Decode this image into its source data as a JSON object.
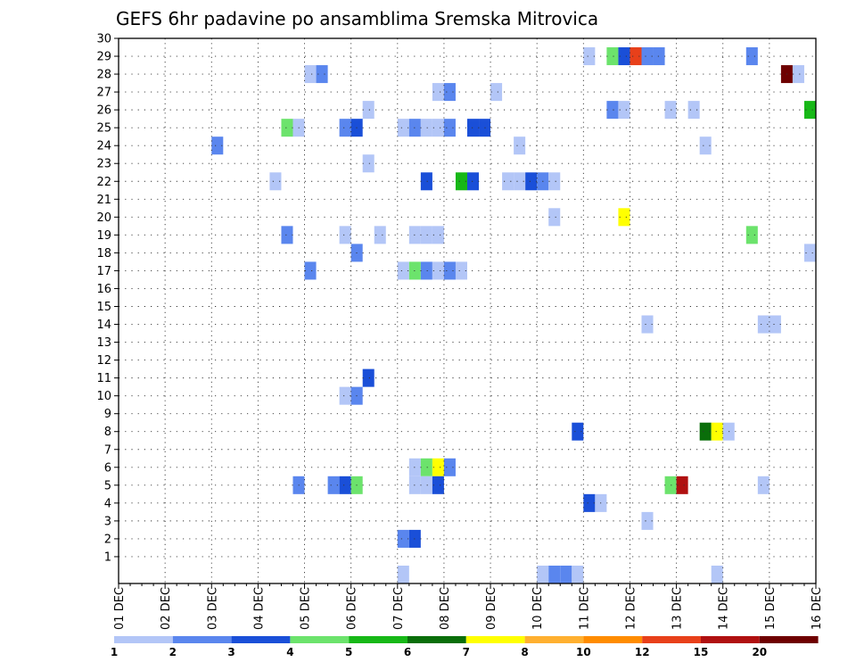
{
  "chart_data": {
    "type": "heatmap",
    "title": "GEFS 6hr padavine po ansamblima Sremska Mitrovica",
    "xlabel": "",
    "ylabel": "",
    "x_ticks": [
      "01 DEC",
      "02 DEC",
      "03 DEC",
      "04 DEC",
      "05 DEC",
      "06 DEC",
      "07 DEC",
      "08 DEC",
      "09 DEC",
      "10 DEC",
      "11 DEC",
      "12 DEC",
      "13 DEC",
      "14 DEC",
      "15 DEC",
      "16 DEC"
    ],
    "y_ticks": [
      "1",
      "2",
      "3",
      "4",
      "5",
      "6",
      "7",
      "8",
      "9",
      "10",
      "11",
      "12",
      "13",
      "14",
      "15",
      "16",
      "17",
      "18",
      "19",
      "20",
      "21",
      "22",
      "23",
      "24",
      "25",
      "26",
      "27",
      "28",
      "29",
      "30"
    ],
    "x_step_hours": 6,
    "ylim": [
      0,
      30
    ],
    "grid": true,
    "legend": {
      "placement": "bottom",
      "bins": [
        {
          "color": "#b3c6f7"
        },
        {
          "color": "#5a86ee"
        },
        {
          "color": "#1a4fd8"
        },
        {
          "color": "#6ce36c"
        },
        {
          "color": "#17b817"
        },
        {
          "color": "#0a6e0a"
        },
        {
          "color": "#ffff00"
        },
        {
          "color": "#ffb030"
        },
        {
          "color": "#ff8c00"
        },
        {
          "color": "#e8401a"
        },
        {
          "color": "#b01010"
        },
        {
          "color": "#6e0000"
        }
      ],
      "boundaries": [
        "1",
        "2",
        "3",
        "4",
        "5",
        "6",
        "7",
        "8",
        "10",
        "12",
        "15",
        "20"
      ]
    },
    "cells": [
      {
        "m": 29,
        "s": [
          [
            40,
            1
          ],
          [
            42,
            4
          ],
          [
            43,
            3
          ],
          [
            44,
            10
          ],
          [
            45,
            2
          ],
          [
            46,
            2
          ],
          [
            54,
            2
          ]
        ]
      },
      {
        "m": 28,
        "s": [
          [
            16,
            1
          ],
          [
            17,
            2
          ],
          [
            57,
            12
          ],
          [
            58,
            1
          ]
        ]
      },
      {
        "m": 27,
        "s": [
          [
            27,
            1
          ],
          [
            28,
            2
          ],
          [
            32,
            1
          ]
        ]
      },
      {
        "m": 26,
        "s": [
          [
            21,
            1
          ],
          [
            42,
            2
          ],
          [
            43,
            1
          ],
          [
            47,
            1
          ],
          [
            49,
            1
          ],
          [
            59,
            5
          ]
        ]
      },
      {
        "m": 25,
        "s": [
          [
            14,
            4
          ],
          [
            15,
            1
          ],
          [
            19,
            2
          ],
          [
            20,
            3
          ],
          [
            24,
            1
          ],
          [
            25,
            2
          ],
          [
            26,
            1
          ],
          [
            27,
            1
          ],
          [
            28,
            2
          ],
          [
            30,
            3
          ],
          [
            31,
            3
          ]
        ]
      },
      {
        "m": 24,
        "s": [
          [
            8,
            2
          ],
          [
            34,
            1
          ],
          [
            50,
            1
          ]
        ]
      },
      {
        "m": 23,
        "s": [
          [
            21,
            1
          ]
        ]
      },
      {
        "m": 22,
        "s": [
          [
            13,
            1
          ],
          [
            26,
            3
          ],
          [
            29,
            5
          ],
          [
            30,
            3
          ],
          [
            33,
            1
          ],
          [
            34,
            1
          ],
          [
            35,
            3
          ],
          [
            36,
            2
          ],
          [
            37,
            1
          ]
        ]
      },
      {
        "m": 20,
        "s": [
          [
            37,
            1
          ],
          [
            43,
            7
          ]
        ]
      },
      {
        "m": 19,
        "s": [
          [
            14,
            2
          ],
          [
            19,
            1
          ],
          [
            22,
            1
          ],
          [
            25,
            1
          ],
          [
            26,
            1
          ],
          [
            27,
            1
          ],
          [
            54,
            4
          ]
        ]
      },
      {
        "m": 18,
        "s": [
          [
            20,
            2
          ],
          [
            59,
            1
          ]
        ]
      },
      {
        "m": 17,
        "s": [
          [
            16,
            2
          ],
          [
            24,
            1
          ],
          [
            25,
            4
          ],
          [
            26,
            2
          ],
          [
            27,
            1
          ],
          [
            28,
            2
          ],
          [
            29,
            1
          ]
        ]
      },
      {
        "m": 14,
        "s": [
          [
            45,
            1
          ],
          [
            55,
            1
          ],
          [
            56,
            1
          ]
        ]
      },
      {
        "m": 11,
        "s": [
          [
            21,
            3
          ]
        ]
      },
      {
        "m": 10,
        "s": [
          [
            19,
            1
          ],
          [
            20,
            2
          ]
        ]
      },
      {
        "m": 8,
        "s": [
          [
            39,
            3
          ],
          [
            50,
            6
          ],
          [
            51,
            7
          ],
          [
            52,
            1
          ]
        ]
      },
      {
        "m": 6,
        "s": [
          [
            25,
            1
          ],
          [
            26,
            4
          ],
          [
            27,
            7
          ],
          [
            28,
            2
          ]
        ]
      },
      {
        "m": 5,
        "s": [
          [
            15,
            2
          ],
          [
            18,
            2
          ],
          [
            19,
            3
          ],
          [
            20,
            4
          ],
          [
            25,
            1
          ],
          [
            26,
            1
          ],
          [
            27,
            3
          ],
          [
            47,
            4
          ],
          [
            48,
            11
          ],
          [
            55,
            1
          ]
        ]
      },
      {
        "m": 4,
        "s": [
          [
            40,
            3
          ],
          [
            41,
            1
          ]
        ]
      },
      {
        "m": 3,
        "s": [
          [
            45,
            1
          ]
        ]
      },
      {
        "m": 2,
        "s": [
          [
            24,
            2
          ],
          [
            25,
            3
          ]
        ]
      },
      {
        "m": 0,
        "s": [
          [
            24,
            1
          ],
          [
            36,
            1
          ],
          [
            37,
            2
          ],
          [
            38,
            2
          ],
          [
            39,
            1
          ],
          [
            51,
            1
          ]
        ]
      }
    ]
  }
}
